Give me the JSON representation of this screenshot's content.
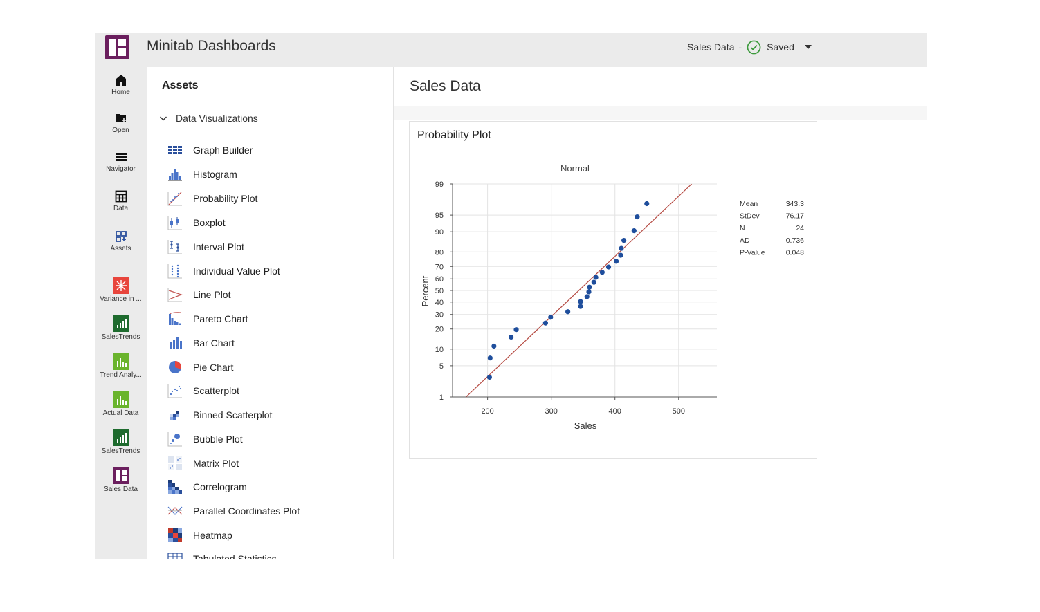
{
  "header": {
    "app_title": "Minitab Dashboards",
    "doc_name": "Sales Data",
    "separator": "-",
    "save_status": "Saved"
  },
  "rail": {
    "items": [
      {
        "label": "Home",
        "icon": "home-icon"
      },
      {
        "label": "Open",
        "icon": "folder-open-icon"
      },
      {
        "label": "Navigator",
        "icon": "list-icon"
      },
      {
        "label": "Data",
        "icon": "table-icon"
      },
      {
        "label": "Assets",
        "icon": "assets-grid-icon"
      }
    ],
    "recent": [
      {
        "label": "Variance in ...",
        "color": "#e8453c",
        "icon": "variance-tile-icon"
      },
      {
        "label": "SalesTrends",
        "color": "#1e6b2e",
        "icon": "salestrends-tile-icon"
      },
      {
        "label": "Trend Analy...",
        "color": "#6ab42d",
        "icon": "trend-tile-icon"
      },
      {
        "label": "Actual Data",
        "color": "#6ab42d",
        "icon": "actual-data-tile-icon"
      },
      {
        "label": "SalesTrends",
        "color": "#1e6b2e",
        "icon": "salestrends-tile-icon"
      },
      {
        "label": "Sales Data",
        "color": "#6b1f5e",
        "icon": "sales-data-tile-icon"
      }
    ]
  },
  "assets": {
    "title": "Assets",
    "section": "Data Visualizations",
    "items": [
      {
        "label": "Graph Builder",
        "icon": "graph-builder-icon"
      },
      {
        "label": "Histogram",
        "icon": "histogram-icon"
      },
      {
        "label": "Probability Plot",
        "icon": "probability-plot-icon"
      },
      {
        "label": "Boxplot",
        "icon": "boxplot-icon"
      },
      {
        "label": "Interval Plot",
        "icon": "interval-plot-icon"
      },
      {
        "label": "Individual Value Plot",
        "icon": "individual-value-plot-icon"
      },
      {
        "label": "Line Plot",
        "icon": "line-plot-icon"
      },
      {
        "label": "Pareto Chart",
        "icon": "pareto-chart-icon"
      },
      {
        "label": "Bar Chart",
        "icon": "bar-chart-icon"
      },
      {
        "label": "Pie Chart",
        "icon": "pie-chart-icon"
      },
      {
        "label": "Scatterplot",
        "icon": "scatterplot-icon"
      },
      {
        "label": "Binned Scatterplot",
        "icon": "binned-scatterplot-icon"
      },
      {
        "label": "Bubble Plot",
        "icon": "bubble-plot-icon"
      },
      {
        "label": "Matrix Plot",
        "icon": "matrix-plot-icon"
      },
      {
        "label": "Correlogram",
        "icon": "correlogram-icon"
      },
      {
        "label": "Parallel Coordinates Plot",
        "icon": "parallel-coordinates-icon"
      },
      {
        "label": "Heatmap",
        "icon": "heatmap-icon"
      },
      {
        "label": "Tabulated Statistics",
        "icon": "tabulated-statistics-icon"
      }
    ]
  },
  "main": {
    "title": "Sales Data",
    "card_title": "Probability Plot"
  },
  "chart_data": {
    "type": "scatter",
    "subtitle": "Normal",
    "xlabel": "Sales",
    "ylabel": "Percent",
    "xlim": [
      145,
      560
    ],
    "x_ticks": [
      200,
      300,
      400,
      500
    ],
    "y_ticks": [
      1,
      5,
      10,
      20,
      30,
      40,
      50,
      60,
      70,
      80,
      90,
      95,
      99
    ],
    "ylim": [
      1,
      99
    ],
    "grid": true,
    "point_color": "#1f4e9c",
    "line_color": "#b54a42",
    "fit_line": {
      "mean": 343.3,
      "stdev": 76.17
    },
    "points": [
      {
        "x": 203,
        "y": 2.9
      },
      {
        "x": 204,
        "y": 7.0
      },
      {
        "x": 210,
        "y": 11.2
      },
      {
        "x": 237,
        "y": 15.4
      },
      {
        "x": 245,
        "y": 19.6
      },
      {
        "x": 291,
        "y": 23.8
      },
      {
        "x": 299,
        "y": 27.9
      },
      {
        "x": 326,
        "y": 32.1
      },
      {
        "x": 346,
        "y": 36.3
      },
      {
        "x": 346,
        "y": 40.4
      },
      {
        "x": 356,
        "y": 44.6
      },
      {
        "x": 359,
        "y": 48.8
      },
      {
        "x": 360,
        "y": 52.9
      },
      {
        "x": 367,
        "y": 57.1
      },
      {
        "x": 370,
        "y": 61.3
      },
      {
        "x": 380,
        "y": 65.4
      },
      {
        "x": 390,
        "y": 69.6
      },
      {
        "x": 402,
        "y": 73.8
      },
      {
        "x": 409,
        "y": 77.9
      },
      {
        "x": 410,
        "y": 82.1
      },
      {
        "x": 414,
        "y": 86.3
      },
      {
        "x": 430,
        "y": 90.4
      },
      {
        "x": 435,
        "y": 94.6
      },
      {
        "x": 450,
        "y": 97.1
      }
    ],
    "stats": [
      {
        "label": "Mean",
        "value": "343.3"
      },
      {
        "label": "StDev",
        "value": "76.17"
      },
      {
        "label": "N",
        "value": "24"
      },
      {
        "label": "AD",
        "value": "0.736"
      },
      {
        "label": "P-Value",
        "value": "0.048"
      }
    ]
  }
}
